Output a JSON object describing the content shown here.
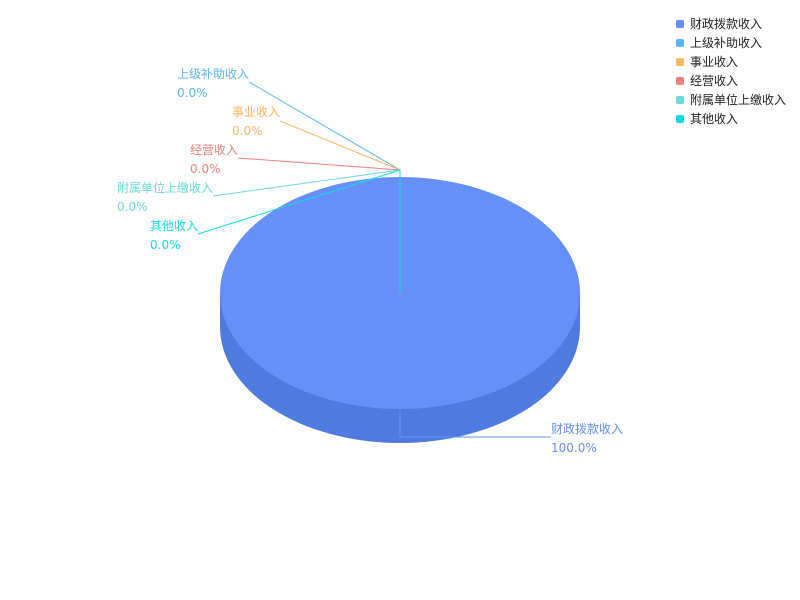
{
  "chart_data": {
    "type": "pie",
    "style": "3d",
    "legend_position": "top-right",
    "categories": [
      "财政拨款收入",
      "上级补助收入",
      "事业收入",
      "经营收入",
      "附属单位上缴收入",
      "其他收入"
    ],
    "values": [
      100.0,
      0.0,
      0.0,
      0.0,
      0.0,
      0.0
    ],
    "labels": [
      "100.0%",
      "0.0%",
      "0.0%",
      "0.0%",
      "0.0%",
      "0.0%"
    ],
    "colors": [
      "#6690f8",
      "#5ab8f7",
      "#fcb762",
      "#f17f7f",
      "#6adbd6",
      "#10dde3"
    ],
    "side_color": "#4f7be0"
  }
}
